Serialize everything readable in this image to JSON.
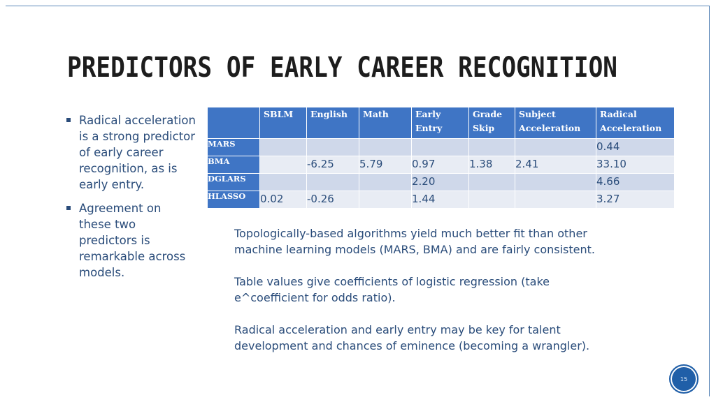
{
  "title": "PREDICTORS OF EARLY CAREER RECOGNITION",
  "bullets": [
    {
      "text": "Radical acceleration is a strong predictor of early career recognition, as is early entry."
    },
    {
      "text": "Agreement on these two predictors is remarkable across models."
    }
  ],
  "table": {
    "columns": [
      "",
      "SBLM",
      "English",
      "Math",
      "Early Entry",
      "Grade Skip",
      "Subject Acceleration",
      "Radical Acceleration"
    ],
    "rows": [
      {
        "label": "MARS",
        "cells": [
          "",
          "",
          "",
          "",
          "",
          "",
          "0.44"
        ]
      },
      {
        "label": "BMA",
        "cells": [
          "",
          "-6.25",
          "5.79",
          "0.97",
          "1.38",
          "2.41",
          "33.10"
        ]
      },
      {
        "label": "DGLARS",
        "cells": [
          "",
          "",
          "",
          "2.20",
          "",
          "",
          "4.66"
        ]
      },
      {
        "label": "HLASSO",
        "cells": [
          "0.02",
          "-0.26",
          "",
          "1.44",
          "",
          "",
          "3.27"
        ]
      }
    ]
  },
  "notes": [
    {
      "lines": [
        "Topologically-based algorithms yield much better fit than other",
        "machine learning models (MARS, BMA) and are fairly consistent."
      ]
    },
    {
      "lines": [
        "Table values give coefficients of logistic regression (take",
        "e^coefficient for odds ratio)."
      ]
    },
    {
      "lines": [
        "Radical acceleration and early entry may be key for talent",
        "development and chances of eminence (becoming a wrangler)."
      ]
    }
  ],
  "page_number": "15",
  "colors": {
    "accent": "#3f75c5",
    "text": "#2a4c7a",
    "row_dark": "#cfd8ea",
    "row_light": "#e8ecf4"
  }
}
